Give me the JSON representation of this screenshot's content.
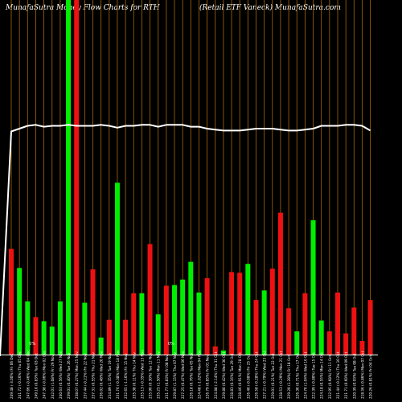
{
  "header": {
    "left": "MunafaSutra  Money Flow  Charts for RTH",
    "right": "(Retail ETF Vaneck) MunafaSutra.com"
  },
  "colors": {
    "background": "#000000",
    "up": "#00ee00",
    "down": "#ee1111",
    "grid": "#aa6a00",
    "line": "#ffffff",
    "baseline": "#ffffff"
  },
  "annotations": [
    {
      "text": "0%",
      "category_index": 2
    },
    {
      "text": "0%",
      "category_index": 19
    }
  ],
  "chart_data": {
    "type": "bar",
    "title": "",
    "categories": [
      "Fri 06 Dec",
      "Thu 05 Dec",
      "Wed 04 Dec",
      "Tue 03 Dec",
      "Mon 02 Dec",
      "Fri 29 Nov",
      "Wed 27 Nov",
      "Tue 26 Nov",
      "Mon 25 Nov",
      "Fri 22 Nov",
      "Thu 21 Nov",
      "Wed 20 Nov",
      "Tue 19 Nov",
      "Mon 18 Nov",
      "Fri 15 Nov",
      "Thu 14 Nov",
      "Wed 13 Nov",
      "Tue 12 Nov",
      "Mon 11 Nov",
      "Fri 08 Nov",
      "Thu 07 Nov",
      "Wed 06 Nov",
      "Tue 05 Nov",
      "Mon 04 Nov",
      "Fri 01 Nov",
      "Thu 31 Oct",
      "Wed 30 Oct",
      "Tue 29 Oct",
      "Mon 28 Oct",
      "Fri 25 Oct",
      "Thu 24 Oct",
      "Wed 23 Oct",
      "Tue 22 Oct",
      "Mon 21 Oct",
      "Fri 18 Oct",
      "Thu 17 Oct",
      "Wed 16 Oct",
      "Tue 15 Oct",
      "Mon 14 Oct",
      "Fri 11 Oct",
      "Thu 10 Oct",
      "Wed 09 Oct",
      "Tue 08 Oct",
      "Mon 07 Oct",
      "Fri 04 Oct"
    ],
    "x_tick_labels": [
      "249.48 (-3.00%) Fri 06 Dec",
      "241.72 (-0.16%) Thu 05 Dec",
      "247.66 (-0.46%) Wed 04 Dec",
      "249.10 (0.83%) Tue 03 Dec",
      "247.38 (-0.06%) Mon 02 Dec",
      "242.01 (1.08%) Fri 29 Nov",
      "240.63 (0.56%) Wed 27 Nov",
      "239.01 (0.40%) Tue 26 Nov",
      "238.07 (0.27%) Mon 25 Nov",
      "237.44 (-0.21%) Fri 22 Nov",
      "237.31 (0.55%) Thu 21 Nov",
      "236.02 (0.48%) Wed 20 Nov",
      "234.89 (1.35%) Tue 19 Nov",
      "231.76 (-0.38%) Mon 18 Nov",
      "232.65 (-1.16%) Fri 15 Nov",
      "235.38 (0.11%) Thu 14 Nov",
      "235.13 (-0.35%) Wed 13 Nov",
      "235.96 (0.30%) Tue 12 Nov",
      "235.25 (1.50%) Mon 11 Nov",
      "231.77 (0.83%) Fri 08 Nov",
      "229.87 (1.15%) Thu 07 Nov",
      "227.25 (0.47%) Wed 06 Nov",
      "226.18 (0.76%) Tue 05 Nov",
      "224.48 (-1.02%) Mon 04 Nov",
      "226.79 (0.85%) Fri 01 Nov",
      "224.88 (-2.14%) Thu 31 Oct",
      "229.80 (0.42%) Wed 30 Oct",
      "228.83 (0.16%) Tue 29 Oct",
      "228.46 (0.91%) Mon 28 Oct",
      "226.40 (-0.08%) Fri 25 Oct",
      "226.58 (-0.28%) Thu 24 Oct",
      "227.21 (-0.79%) Wed 23 Oct",
      "229.01 (0.21%) Tue 22 Oct",
      "228.53 (-0.29%) Mon 21 Oct",
      "229.20 (1.28%) Fri 18 Oct",
      "226.30 (0.71%) Thu 17 Oct",
      "224.70 (1.04%) Wed 16 Oct",
      "222.39 (-0.80%) Tue 15 Oct",
      "224.18 (0.55%) Mon 14 Oct",
      "222.95 (0.68%) Fri 11 Oct",
      "221.44 (-0.12%) Thu 10 Oct",
      "221.71 (0.60%) Wed 09 Oct",
      "220.39 (0.93%) Tue 08 Oct",
      "218.36 (-0.86%) Mon 07 Oct",
      "220.26 (0.81%) Fri 04 Oct"
    ],
    "series": [
      {
        "kind": "bars",
        "direction": [
          "down",
          "up",
          "up",
          "down",
          "up",
          "up",
          "up",
          "up",
          "down",
          "up",
          "down",
          "up",
          "down",
          "up",
          "down",
          "down",
          "up",
          "down",
          "up",
          "down",
          "up",
          "up",
          "up",
          "up",
          "down",
          "down",
          "up",
          "down",
          "down",
          "up",
          "down",
          "up",
          "down",
          "down",
          "down",
          "up",
          "down",
          "up",
          "up",
          "down",
          "down",
          "down",
          "down",
          "down",
          "down"
        ],
        "values": [
          155,
          127,
          78,
          55,
          49,
          41,
          78,
          520,
          520,
          76,
          125,
          25,
          51,
          252,
          51,
          90,
          90,
          162,
          59,
          101,
          102,
          110,
          136,
          91,
          112,
          12,
          6,
          121,
          120,
          133,
          80,
          94,
          126,
          208,
          68,
          34,
          90,
          197,
          50,
          34,
          91,
          31,
          69,
          20,
          80
        ]
      },
      {
        "kind": "line",
        "values": [
          235,
          238,
          241,
          242,
          240,
          241,
          241,
          242,
          241,
          241,
          241,
          242,
          241,
          239,
          241,
          241,
          242,
          242,
          240,
          242,
          242,
          242,
          240,
          240,
          238,
          237,
          236,
          236,
          236,
          237,
          238,
          238,
          238,
          237,
          236,
          236,
          237,
          238,
          241,
          241,
          241,
          242,
          242,
          241,
          236
        ]
      }
    ],
    "ylim": [
      0,
      520
    ],
    "line_ylim": [
      0,
      310
    ],
    "grid": true
  }
}
